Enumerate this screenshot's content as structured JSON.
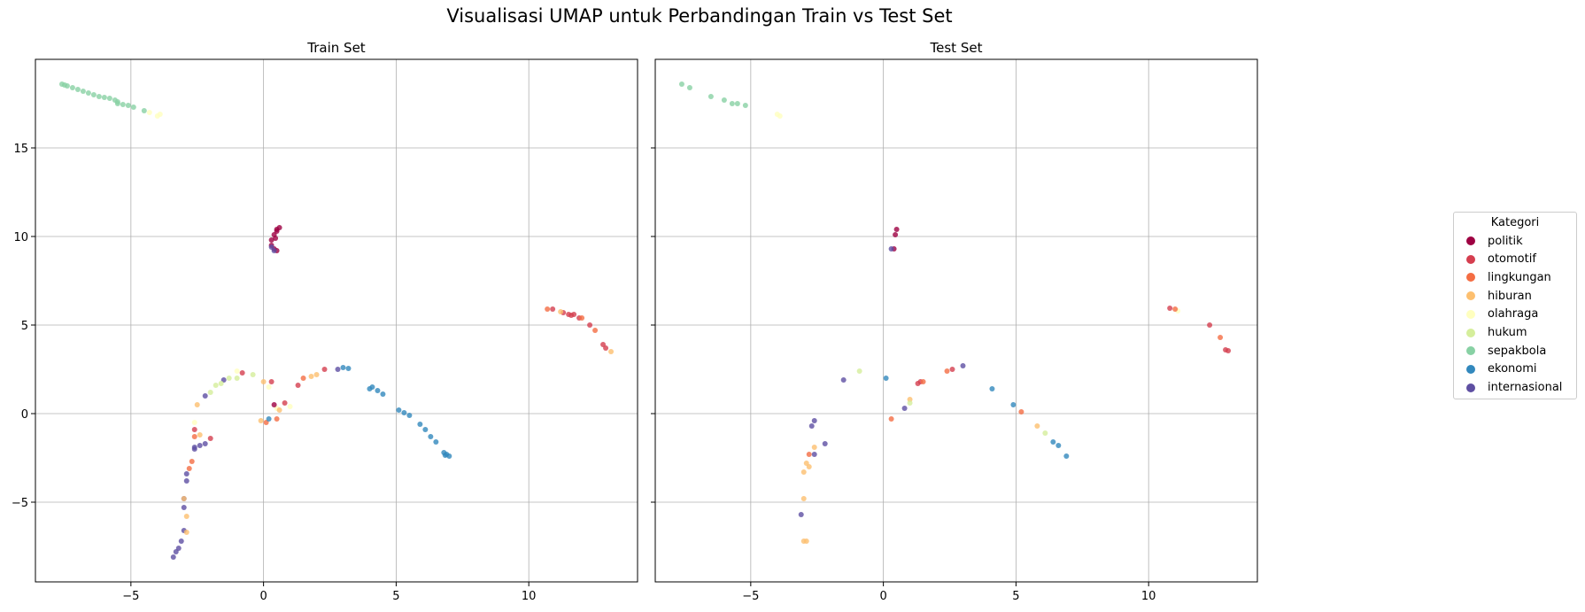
{
  "title": "Visualisasi UMAP untuk Perbandingan Train vs Test Set",
  "legend": {
    "title": "Kategori",
    "entries": [
      {
        "label": "politik",
        "color": "#9e0142"
      },
      {
        "label": "otomotif",
        "color": "#d53e4f"
      },
      {
        "label": "lingkungan",
        "color": "#f46d43"
      },
      {
        "label": "hiburan",
        "color": "#fdbf6f"
      },
      {
        "label": "olahraga",
        "color": "#ffffbf"
      },
      {
        "label": "hukum",
        "color": "#d5ee9b"
      },
      {
        "label": "sepakbola",
        "color": "#88d1a4"
      },
      {
        "label": "ekonomi",
        "color": "#3288bd"
      },
      {
        "label": "internasional",
        "color": "#5e4fa2"
      }
    ]
  },
  "chart_data": [
    {
      "type": "scatter",
      "title": "Train Set",
      "xlim": [
        -8.6,
        14.1
      ],
      "ylim": [
        -9.5,
        20.0
      ],
      "xticks": [
        -5,
        0,
        5,
        10
      ],
      "yticks": [
        -5,
        0,
        5,
        10,
        15
      ],
      "grid": true,
      "series": [
        {
          "name": "sepakbola",
          "points": [
            [
              -7.6,
              18.6
            ],
            [
              -7.4,
              18.5
            ],
            [
              -7.2,
              18.4
            ],
            [
              -7.0,
              18.3
            ],
            [
              -6.8,
              18.2
            ],
            [
              -6.6,
              18.1
            ],
            [
              -6.4,
              18.0
            ],
            [
              -6.2,
              17.9
            ],
            [
              -6.0,
              17.85
            ],
            [
              -5.8,
              17.8
            ],
            [
              -5.6,
              17.7
            ],
            [
              -5.5,
              17.5
            ],
            [
              -5.3,
              17.45
            ],
            [
              -5.1,
              17.4
            ],
            [
              -4.9,
              17.3
            ],
            [
              -4.5,
              17.1
            ],
            [
              -7.5,
              18.55
            ],
            [
              -5.5,
              17.6
            ]
          ]
        },
        {
          "name": "olahraga",
          "points": [
            [
              -4.3,
              17.0
            ],
            [
              -4.0,
              16.8
            ],
            [
              -3.9,
              16.9
            ],
            [
              -1.0,
              2.4
            ],
            [
              0.5,
              0.3
            ],
            [
              1.0,
              0.4
            ],
            [
              0.2,
              1.5
            ],
            [
              -2.6,
              -0.5
            ]
          ]
        },
        {
          "name": "politik",
          "points": [
            [
              0.4,
              10.1
            ],
            [
              0.5,
              10.4
            ],
            [
              0.6,
              10.5
            ],
            [
              0.3,
              9.8
            ],
            [
              0.4,
              9.3
            ],
            [
              0.5,
              9.2
            ],
            [
              0.3,
              9.5
            ],
            [
              0.45,
              9.9
            ],
            [
              0.5,
              10.3
            ],
            [
              0.4,
              0.5
            ]
          ]
        },
        {
          "name": "internasional",
          "points": [
            [
              0.3,
              9.4
            ],
            [
              0.4,
              9.2
            ],
            [
              -1.5,
              1.9
            ],
            [
              -2.2,
              1.0
            ],
            [
              -2.4,
              -1.8
            ],
            [
              -2.2,
              -1.7
            ],
            [
              -2.6,
              -2.0
            ],
            [
              -2.9,
              -3.4
            ],
            [
              -2.9,
              -3.8
            ],
            [
              -3.0,
              -4.8
            ],
            [
              -3.0,
              -5.3
            ],
            [
              -3.0,
              -6.6
            ],
            [
              -3.1,
              -7.2
            ],
            [
              -3.2,
              -7.6
            ],
            [
              -3.3,
              -7.8
            ],
            [
              -3.4,
              -8.1
            ],
            [
              2.8,
              2.5
            ],
            [
              -2.6,
              -1.9
            ]
          ]
        },
        {
          "name": "otomotif",
          "points": [
            [
              -0.8,
              2.3
            ],
            [
              -2.0,
              -1.4
            ],
            [
              -2.6,
              -0.9
            ],
            [
              1.3,
              1.6
            ],
            [
              2.3,
              2.5
            ],
            [
              0.8,
              0.6
            ],
            [
              10.9,
              5.9
            ],
            [
              11.3,
              5.7
            ],
            [
              11.5,
              5.6
            ],
            [
              11.7,
              5.6
            ],
            [
              11.9,
              5.4
            ],
            [
              12.3,
              5.0
            ],
            [
              12.8,
              3.9
            ],
            [
              12.9,
              3.7
            ],
            [
              11.6,
              5.55
            ],
            [
              0.3,
              1.8
            ]
          ]
        },
        {
          "name": "lingkungan",
          "points": [
            [
              -2.7,
              -2.7
            ],
            [
              -2.8,
              -3.1
            ],
            [
              -2.6,
              -1.3
            ],
            [
              1.5,
              2.0
            ],
            [
              0.1,
              -0.5
            ],
            [
              10.7,
              5.9
            ],
            [
              12.0,
              5.4
            ],
            [
              12.5,
              4.7
            ],
            [
              0.5,
              -0.3
            ]
          ]
        },
        {
          "name": "hiburan",
          "points": [
            [
              -3.0,
              -4.8
            ],
            [
              -2.9,
              -5.8
            ],
            [
              -2.9,
              -6.7
            ],
            [
              -2.5,
              0.5
            ],
            [
              -2.4,
              -1.2
            ],
            [
              0.0,
              1.8
            ],
            [
              0.6,
              0.2
            ],
            [
              1.8,
              2.1
            ],
            [
              2.0,
              2.2
            ],
            [
              13.1,
              3.5
            ],
            [
              -0.1,
              -0.4
            ],
            [
              11.2,
              5.75
            ]
          ]
        },
        {
          "name": "hukum",
          "points": [
            [
              -1.8,
              1.6
            ],
            [
              -1.6,
              1.7
            ],
            [
              -1.3,
              2.0
            ],
            [
              -2.0,
              1.2
            ],
            [
              -0.4,
              2.2
            ],
            [
              -1.0,
              2.0
            ]
          ]
        },
        {
          "name": "ekonomi",
          "points": [
            [
              3.0,
              2.6
            ],
            [
              3.2,
              2.55
            ],
            [
              4.1,
              1.5
            ],
            [
              4.3,
              1.3
            ],
            [
              4.5,
              1.1
            ],
            [
              5.1,
              0.2
            ],
            [
              5.3,
              0.05
            ],
            [
              5.5,
              -0.1
            ],
            [
              5.9,
              -0.6
            ],
            [
              6.1,
              -0.9
            ],
            [
              6.3,
              -1.3
            ],
            [
              6.5,
              -1.6
            ],
            [
              6.8,
              -2.2
            ],
            [
              6.9,
              -2.3
            ],
            [
              7.0,
              -2.4
            ],
            [
              6.85,
              -2.35
            ],
            [
              0.2,
              -0.3
            ],
            [
              4.0,
              1.4
            ]
          ]
        }
      ]
    },
    {
      "type": "scatter",
      "title": "Test Set",
      "xlim": [
        -8.6,
        14.1
      ],
      "ylim": [
        -9.5,
        20.0
      ],
      "xticks": [
        -5,
        0,
        5,
        10
      ],
      "yticks": [
        -5,
        0,
        5,
        10,
        15
      ],
      "grid": true,
      "series": [
        {
          "name": "sepakbola",
          "points": [
            [
              -7.6,
              18.6
            ],
            [
              -7.3,
              18.4
            ],
            [
              -6.5,
              17.9
            ],
            [
              -6.0,
              17.7
            ],
            [
              -5.7,
              17.5
            ],
            [
              -5.5,
              17.5
            ],
            [
              -5.2,
              17.4
            ]
          ]
        },
        {
          "name": "olahraga",
          "points": [
            [
              -4.0,
              16.9
            ],
            [
              -3.9,
              16.8
            ],
            [
              11.1,
              5.8
            ]
          ]
        },
        {
          "name": "politik",
          "points": [
            [
              0.5,
              10.4
            ],
            [
              0.45,
              10.1
            ],
            [
              0.4,
              9.3
            ]
          ]
        },
        {
          "name": "internasional",
          "points": [
            [
              0.3,
              9.3
            ],
            [
              -1.5,
              1.9
            ],
            [
              3.0,
              2.7
            ],
            [
              -2.7,
              -0.7
            ],
            [
              -2.6,
              -0.4
            ],
            [
              -2.2,
              -1.7
            ],
            [
              -2.6,
              -2.3
            ],
            [
              -3.1,
              -5.7
            ],
            [
              0.8,
              0.3
            ]
          ]
        },
        {
          "name": "otomotif",
          "points": [
            [
              1.3,
              1.7
            ],
            [
              2.6,
              2.5
            ],
            [
              12.3,
              5.0
            ],
            [
              12.9,
              3.6
            ],
            [
              13.0,
              3.55
            ],
            [
              10.8,
              5.95
            ],
            [
              1.4,
              1.8
            ]
          ]
        },
        {
          "name": "lingkungan",
          "points": [
            [
              0.3,
              -0.3
            ],
            [
              1.5,
              1.8
            ],
            [
              2.4,
              2.4
            ],
            [
              5.2,
              0.1
            ],
            [
              12.7,
              4.3
            ],
            [
              11.0,
              5.9
            ],
            [
              -2.8,
              -2.3
            ]
          ]
        },
        {
          "name": "hiburan",
          "points": [
            [
              -2.9,
              -2.8
            ],
            [
              -2.8,
              -3.0
            ],
            [
              -3.0,
              -3.3
            ],
            [
              -3.0,
              -4.8
            ],
            [
              -3.0,
              -7.2
            ],
            [
              -2.6,
              -1.9
            ],
            [
              1.0,
              0.8
            ],
            [
              5.8,
              -0.7
            ],
            [
              -2.9,
              -7.2
            ]
          ]
        },
        {
          "name": "hukum",
          "points": [
            [
              -0.9,
              2.4
            ],
            [
              6.1,
              -1.1
            ],
            [
              1.0,
              0.6
            ]
          ]
        },
        {
          "name": "ekonomi",
          "points": [
            [
              0.1,
              2.0
            ],
            [
              4.1,
              1.4
            ],
            [
              4.9,
              0.5
            ],
            [
              6.4,
              -1.6
            ],
            [
              6.6,
              -1.8
            ],
            [
              6.9,
              -2.4
            ]
          ]
        }
      ]
    }
  ]
}
